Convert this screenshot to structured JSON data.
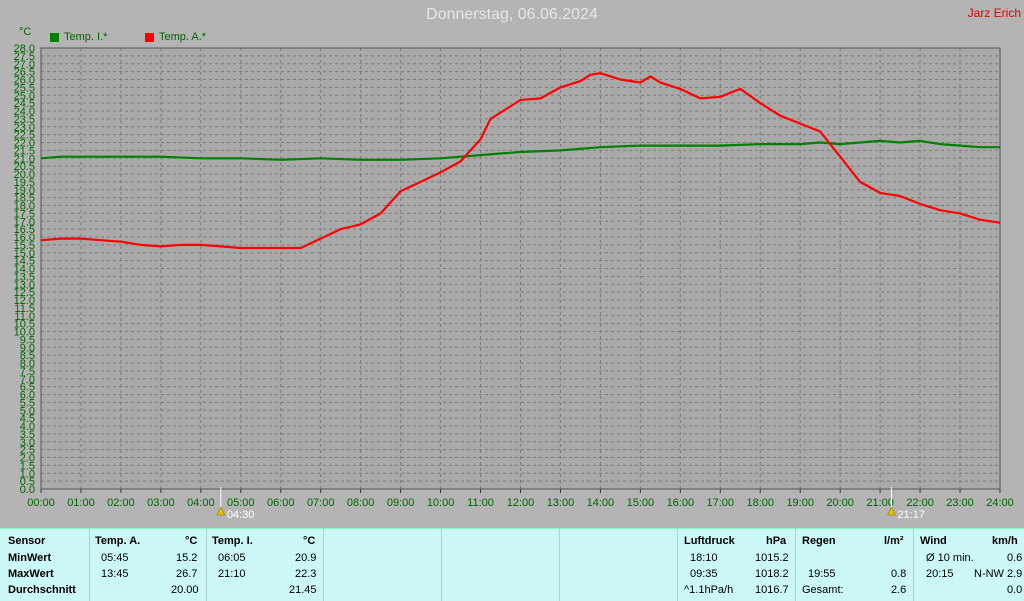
{
  "title": "Donnerstag, 06.06.2024",
  "author": "Jarz Erich",
  "unit": "°C",
  "legend": [
    {
      "label": "Temp. I.*",
      "color": "#008000"
    },
    {
      "label": "Temp. A.*",
      "color": "#ff0000"
    }
  ],
  "sunrise": "04:30",
  "sunset": "21:17",
  "chart_data": {
    "type": "line",
    "title": "Donnerstag, 06.06.2024",
    "ylabel": "°C",
    "ylim": [
      0,
      28
    ],
    "ytick_step": 0.5,
    "xlim": [
      0,
      24
    ],
    "x_ticks": [
      "00:00",
      "01:00",
      "02:00",
      "03:00",
      "04:00",
      "05:00",
      "06:00",
      "07:00",
      "08:00",
      "09:00",
      "10:00",
      "11:00",
      "12:00",
      "13:00",
      "14:00",
      "15:00",
      "16:00",
      "17:00",
      "18:00",
      "19:00",
      "20:00",
      "21:00",
      "22:00",
      "23:00",
      "24:00"
    ],
    "grid": true,
    "legend_position": "top-left",
    "series": [
      {
        "name": "Temp. I.*",
        "color": "#008000",
        "x": [
          0,
          0.5,
          1,
          2,
          3,
          4,
          5,
          6,
          7,
          8,
          9,
          10,
          10.5,
          11,
          11.5,
          12,
          13,
          14,
          15,
          16,
          17,
          18,
          19,
          19.5,
          20,
          21,
          21.5,
          22,
          22.5,
          23,
          23.5,
          24
        ],
        "y": [
          21.0,
          21.1,
          21.1,
          21.1,
          21.1,
          21.0,
          21.0,
          20.9,
          21.0,
          20.9,
          20.9,
          21.0,
          21.1,
          21.2,
          21.3,
          21.4,
          21.5,
          21.7,
          21.8,
          21.8,
          21.8,
          21.9,
          21.9,
          22.0,
          21.9,
          22.1,
          22.0,
          22.1,
          21.9,
          21.8,
          21.7,
          21.7
        ]
      },
      {
        "name": "Temp. A.*",
        "color": "#ff0000",
        "x": [
          0,
          0.5,
          1,
          1.5,
          2,
          2.5,
          3,
          3.5,
          4,
          4.5,
          5,
          5.5,
          6,
          6.5,
          7,
          7.5,
          8,
          8.5,
          9,
          9.5,
          10,
          10.5,
          11,
          11.25,
          11.5,
          12,
          12.5,
          13,
          13.5,
          13.75,
          14,
          14.5,
          15,
          15.25,
          15.5,
          16,
          16.5,
          17,
          17.5,
          18,
          18.5,
          19,
          19.5,
          20,
          20.5,
          21,
          21.5,
          22,
          22.5,
          23,
          23.5,
          24
        ],
        "y": [
          15.8,
          15.9,
          15.9,
          15.8,
          15.7,
          15.5,
          15.4,
          15.5,
          15.5,
          15.4,
          15.3,
          15.3,
          15.3,
          15.3,
          15.9,
          16.5,
          16.8,
          17.5,
          18.9,
          19.5,
          20.1,
          20.8,
          22.2,
          23.5,
          23.9,
          24.7,
          24.8,
          25.5,
          25.9,
          26.3,
          26.4,
          26.0,
          25.8,
          26.2,
          25.8,
          25.4,
          24.8,
          24.9,
          25.4,
          24.5,
          23.7,
          23.2,
          22.7,
          21.1,
          19.5,
          18.8,
          18.6,
          18.1,
          17.7,
          17.5,
          17.1,
          16.9
        ]
      }
    ]
  },
  "table": {
    "headers": {
      "sensor": "Sensor",
      "temp_a": "Temp. A.",
      "temp_a_unit": "°C",
      "temp_i": "Temp. I.",
      "temp_i_unit": "°C",
      "luftdruck": "Luftdruck",
      "luftdruck_unit": "hPa",
      "regen": "Regen",
      "regen_unit": "l/m²",
      "wind": "Wind",
      "wind_unit": "km/h"
    },
    "rows": {
      "min_label": "MinWert",
      "max_label": "MaxWert",
      "avg_label": "Durchschnitt"
    },
    "temp_a": {
      "min_time": "05:45",
      "min_val": "15.2",
      "max_time": "13:45",
      "max_val": "26.7",
      "avg_val": "20.00"
    },
    "temp_i": {
      "min_time": "06:05",
      "min_val": "20.9",
      "max_time": "21:10",
      "max_val": "22.3",
      "avg_val": "21.45"
    },
    "luftdruck": {
      "min_time": "18:10",
      "min_val": "1015.2",
      "max_time": "09:35",
      "max_val": "1018.2",
      "trend": "^1.1hPa/h",
      "avg_val": "1016.7"
    },
    "regen": {
      "max_time": "19:55",
      "max_val": "0.8",
      "total_label": "Gesamt:",
      "total_val": "2.6"
    },
    "wind": {
      "avg_label": "Ø 10 min.",
      "avg_val": "0.6",
      "max_time": "20:15",
      "max_dir_val": "N-NW 2.9",
      "total_val": "0.0"
    }
  }
}
